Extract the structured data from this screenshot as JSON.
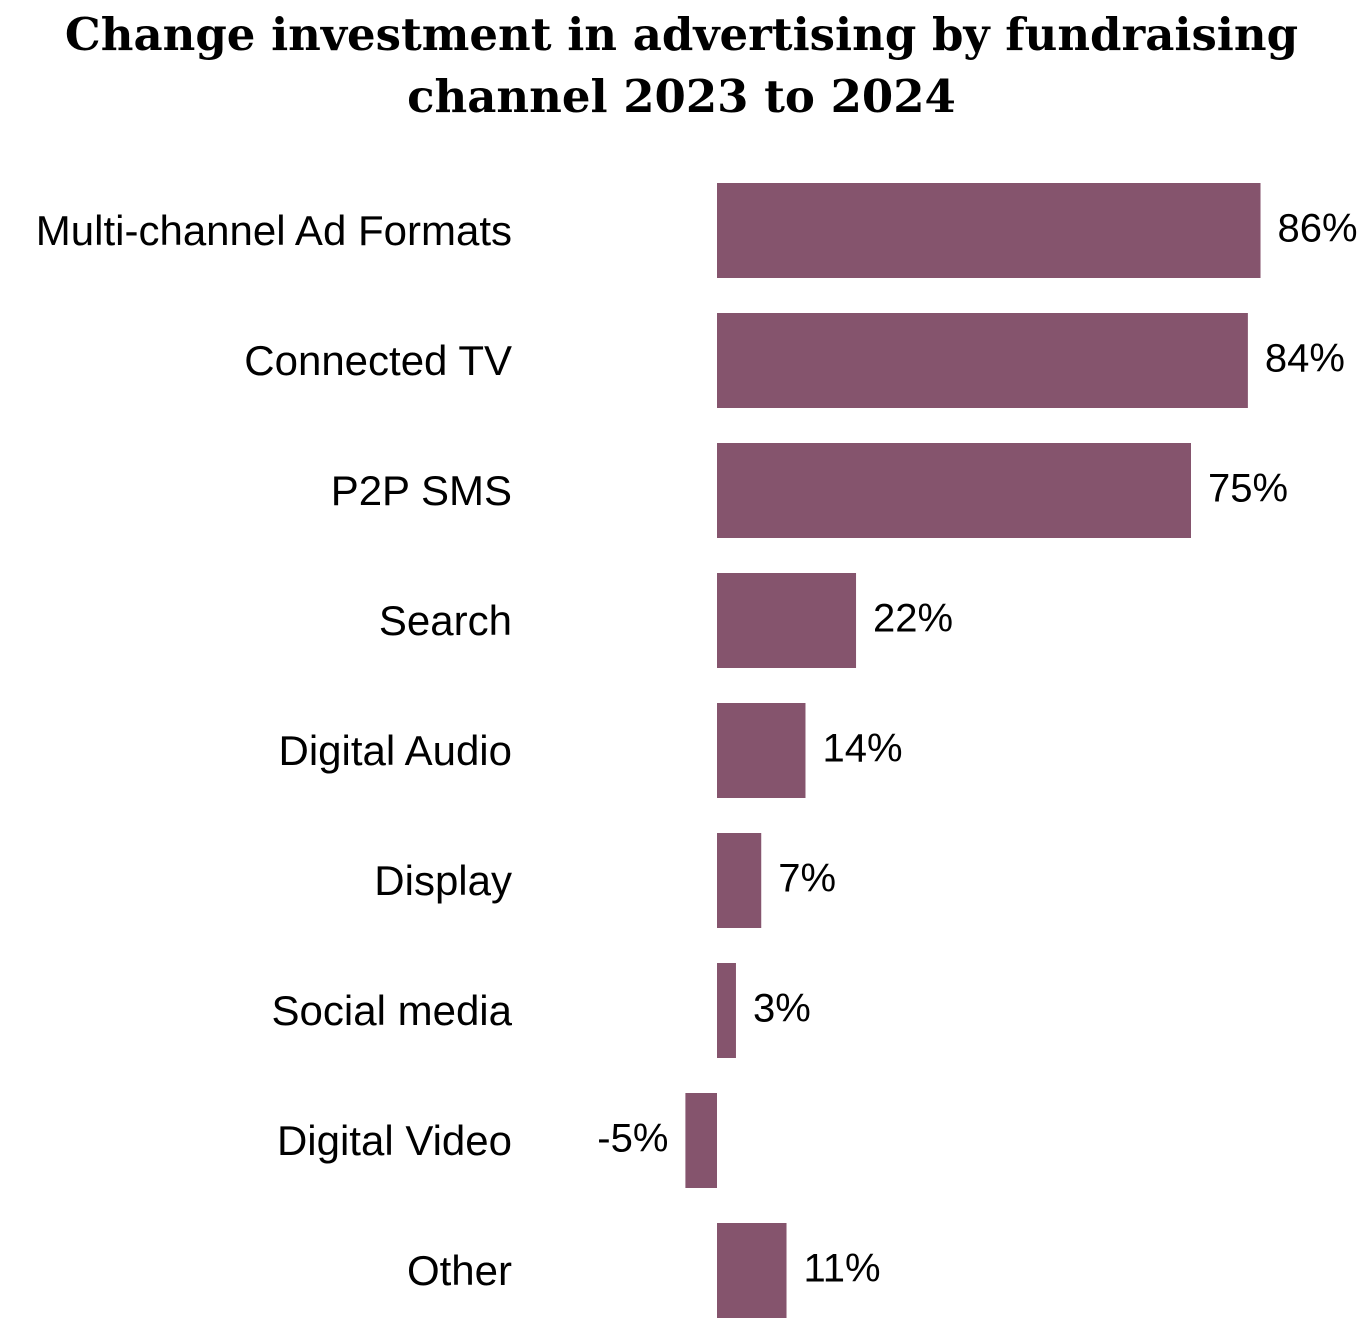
{
  "chart_data": {
    "type": "bar",
    "orientation": "horizontal",
    "title_lines": [
      "Change investment in advertising by fundraising",
      "channel 2023 to 2024"
    ],
    "categories": [
      "Multi-channel Ad Formats",
      "Connected TV",
      "P2P SMS",
      "Search",
      "Digital Audio",
      "Display",
      "Social media",
      "Digital Video",
      "Other"
    ],
    "values": [
      86,
      84,
      75,
      22,
      14,
      7,
      3,
      -5,
      11
    ],
    "value_labels": [
      "86%",
      "84%",
      "75%",
      "22%",
      "14%",
      "7%",
      "3%",
      "-5%",
      "11%"
    ],
    "unit": "%",
    "xlabel": "",
    "ylabel": "",
    "legend": "none",
    "grid": false,
    "colors": {
      "bar": "#85546d"
    }
  }
}
